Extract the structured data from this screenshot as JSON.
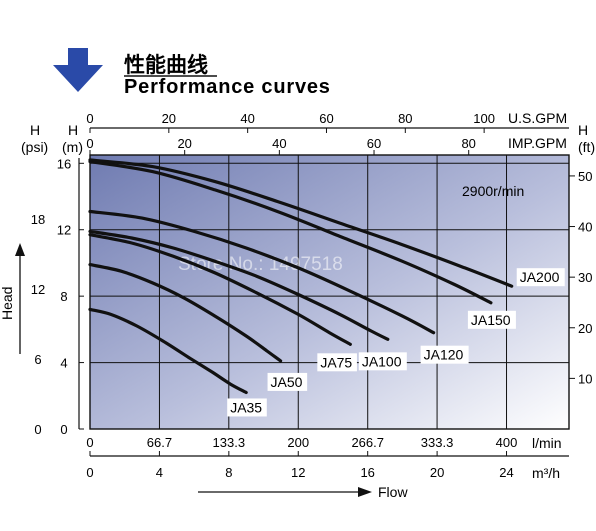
{
  "header": {
    "title_cn": "性能曲线",
    "title_en": "Performance curves"
  },
  "watermark": "Store No.: 1497518",
  "colors": {
    "arrow": "#2a4aa8",
    "plot_bg_dark": "#7c87b8",
    "plot_bg_light": "#ffffff",
    "grid": "#111111",
    "curve": "#111111"
  },
  "chart_data": {
    "type": "line",
    "rpm_note": "2900r/min",
    "left_axes": {
      "psi_unit": "(psi)",
      "psi_label": "H",
      "psi_ticks": [
        "0",
        "6",
        "12",
        "18"
      ],
      "m_unit": "(m)",
      "m_label": "H",
      "m_ticks": [
        "0",
        "4",
        "8",
        "12",
        "16"
      ],
      "head_label": "Head"
    },
    "right_axis": {
      "label": "H",
      "unit": "(ft)",
      "ticks": [
        "10",
        "20",
        "30",
        "40",
        "50"
      ]
    },
    "top_axes": {
      "usgpm_label": "U.S.GPM",
      "usgpm_ticks": [
        "0",
        "20",
        "40",
        "60",
        "80",
        "100"
      ],
      "impgpm_label": "IMP.GPM",
      "impgpm_ticks": [
        "0",
        "20",
        "40",
        "60",
        "80"
      ]
    },
    "bottom_axes": {
      "lmin_unit": "l/min",
      "lmin_ticks": [
        "0",
        "66.7",
        "133.3",
        "200",
        "266.7",
        "333.3",
        "400"
      ],
      "m3h_unit": "m³/h",
      "m3h_ticks": [
        "0",
        "4",
        "8",
        "12",
        "16",
        "20",
        "24"
      ],
      "flow_label": "Flow"
    },
    "xlabel": "Flow",
    "ylabel": "Head",
    "xlim": [
      0,
      460
    ],
    "ylim": [
      0,
      16.5
    ],
    "grid": true,
    "series": [
      {
        "name": "JA35",
        "x": [
          0,
          20,
          45,
          70,
          95,
          118,
          135,
          150
        ],
        "y": [
          7.2,
          6.9,
          6.2,
          5.3,
          4.3,
          3.4,
          2.7,
          2.2
        ]
      },
      {
        "name": "JA50",
        "x": [
          0,
          30,
          60,
          90,
          120,
          150,
          170,
          183
        ],
        "y": [
          9.9,
          9.5,
          8.8,
          7.9,
          6.8,
          5.6,
          4.7,
          4.1
        ]
      },
      {
        "name": "JA75",
        "x": [
          0,
          40,
          80,
          120,
          160,
          200,
          230,
          250
        ],
        "y": [
          11.7,
          11.2,
          10.4,
          9.4,
          8.2,
          6.9,
          5.8,
          5.1
        ]
      },
      {
        "name": "JA100",
        "x": [
          0,
          40,
          80,
          120,
          160,
          200,
          240,
          270,
          286
        ],
        "y": [
          11.9,
          11.5,
          10.9,
          10.1,
          9.2,
          8.1,
          6.9,
          5.9,
          5.4
        ]
      },
      {
        "name": "JA120",
        "x": [
          0,
          50,
          100,
          150,
          200,
          250,
          300,
          330
        ],
        "y": [
          13.1,
          12.7,
          11.9,
          10.9,
          9.7,
          8.3,
          6.8,
          5.8
        ]
      },
      {
        "name": "JA150",
        "x": [
          0,
          60,
          120,
          180,
          240,
          300,
          350,
          385
        ],
        "y": [
          16.1,
          15.5,
          14.4,
          13.1,
          11.6,
          10.1,
          8.7,
          7.6
        ]
      },
      {
        "name": "JA200",
        "x": [
          0,
          60,
          120,
          180,
          240,
          300,
          360,
          405
        ],
        "y": [
          16.2,
          15.8,
          14.9,
          13.7,
          12.4,
          11.1,
          9.7,
          8.6
        ]
      }
    ]
  }
}
